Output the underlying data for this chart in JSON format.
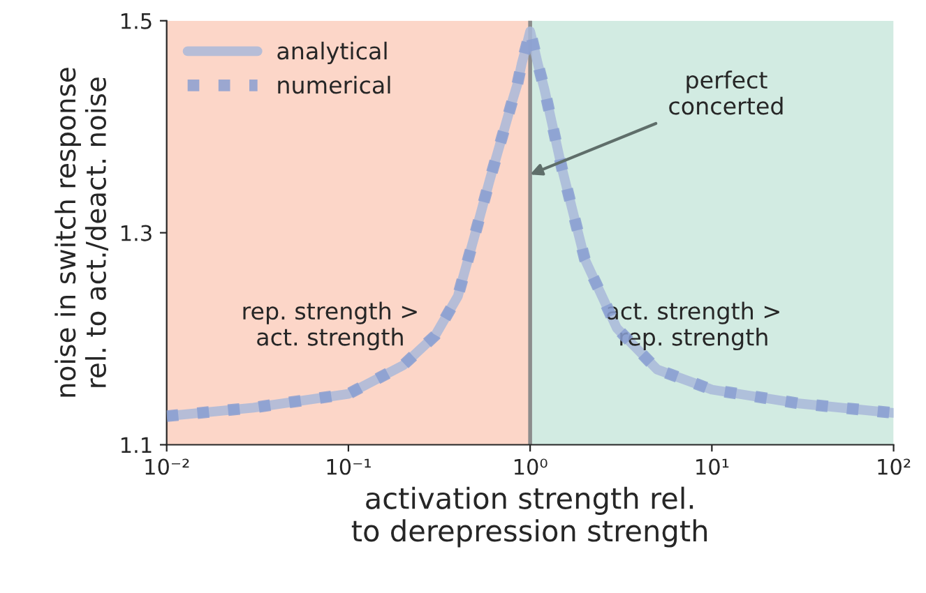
{
  "chart_data": {
    "type": "line",
    "xlabel": "activation strength rel.\nto derepression strength",
    "ylabel": "noise in switch response\nrel. to act./deact. noise",
    "log": "x",
    "xlim": [
      0.01,
      100
    ],
    "ylim": [
      1.1,
      1.5
    ],
    "xticks": [
      {
        "value": 0.01,
        "label": "10⁻²"
      },
      {
        "value": 0.1,
        "label": "10⁻¹"
      },
      {
        "value": 1,
        "label": "10⁰"
      },
      {
        "value": 10,
        "label": "10¹"
      },
      {
        "value": 100,
        "label": "10²"
      }
    ],
    "yticks": [
      1.1,
      1.3,
      1.5
    ],
    "x": [
      0.01,
      0.03,
      0.1,
      0.2,
      0.3,
      0.4,
      0.5,
      0.6,
      0.7,
      0.8,
      0.85,
      0.9,
      0.95,
      1,
      1.05,
      1.1,
      1.2,
      1.5,
      2,
      3,
      5,
      10,
      30,
      100
    ],
    "series": [
      {
        "name": "analytical",
        "color": "#a9b9d9",
        "line_style": "solid",
        "values": [
          1.127,
          1.135,
          1.148,
          1.175,
          1.203,
          1.24,
          1.3,
          1.35,
          1.39,
          1.425,
          1.44,
          1.46,
          1.475,
          1.49,
          1.475,
          1.46,
          1.435,
          1.36,
          1.275,
          1.21,
          1.171,
          1.152,
          1.139,
          1.13
        ]
      },
      {
        "name": "numerical",
        "color": "#8a9fd1",
        "line_style": "dotted",
        "values": [
          1.127,
          1.135,
          1.148,
          1.175,
          1.203,
          1.24,
          1.3,
          1.35,
          1.39,
          1.425,
          1.44,
          1.46,
          1.475,
          1.49,
          1.475,
          1.46,
          1.435,
          1.36,
          1.275,
          1.21,
          1.171,
          1.152,
          1.139,
          1.13
        ]
      }
    ],
    "bands": [
      {
        "axis": "x",
        "from": 0.01,
        "to": 1,
        "label": "rep. strength >\nact. strength",
        "color": "#fcd6c8"
      },
      {
        "axis": "x",
        "from": 1,
        "to": 100,
        "label": "act. strength >\nrep. strength",
        "color": "#d2ebe2"
      }
    ],
    "ref_lines": [
      {
        "axis": "x",
        "value": 1,
        "color": "#8c8c8c",
        "line_style": "solid"
      }
    ],
    "annotations": [
      {
        "text": "perfect\nconcerted",
        "x": 1,
        "y": 1.355
      }
    ],
    "legend": "top left",
    "grid": false
  }
}
